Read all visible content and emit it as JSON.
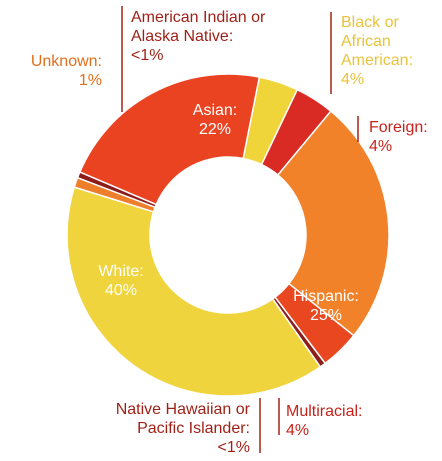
{
  "chart_data": {
    "type": "pie",
    "donut": true,
    "title": "",
    "slices": [
      {
        "name": "Asian",
        "value": 22,
        "value_label": "22%",
        "color": "#ea4321"
      },
      {
        "name": "Black or African American",
        "value": 4,
        "value_label": "4%",
        "color": "#f0d53a"
      },
      {
        "name": "Foreign",
        "value": 4,
        "value_label": "4%",
        "color": "#d92a24"
      },
      {
        "name": "Hispanic",
        "value": 25,
        "value_label": "25%",
        "color": "#f1822a"
      },
      {
        "name": "Multiracial",
        "value": 4,
        "value_label": "4%",
        "color": "#e8471f"
      },
      {
        "name": "Native Hawaiian or Pacific Islander",
        "value": 0.6,
        "value_label": "<1%",
        "color": "#8d1d1a"
      },
      {
        "name": "White",
        "value": 40,
        "value_label": "40%",
        "color": "#f0d43d"
      },
      {
        "name": "Unknown",
        "value": 1,
        "value_label": "1%",
        "color": "#ed7f2a"
      },
      {
        "name": "American Indian or Alaska Native",
        "value": 0.6,
        "value_label": "<1%",
        "color": "#8d1d1a"
      }
    ]
  },
  "labels": {
    "american_indian": {
      "line1": "American Indian or",
      "line2": "Alaska Native:",
      "line3": "<1%"
    },
    "black": {
      "line1": "Black or",
      "line2": "African",
      "line3": "American:",
      "line4": "4%"
    },
    "unknown": {
      "line1": "Unknown:",
      "line2": "1%"
    },
    "asian": {
      "line1": "Asian:",
      "line2": "22%"
    },
    "foreign": {
      "line1": "Foreign:",
      "line2": "4%"
    },
    "white": {
      "line1": "White:",
      "line2": "40%"
    },
    "hispanic": {
      "line1": "Hispanic:",
      "line2": "25%"
    },
    "native_hawaiian": {
      "line1": "Native Hawaiian or",
      "line2": "Pacific Islander:",
      "line3": "<1%"
    },
    "multiracial": {
      "line1": "Multiracial:",
      "line2": "4%"
    }
  }
}
